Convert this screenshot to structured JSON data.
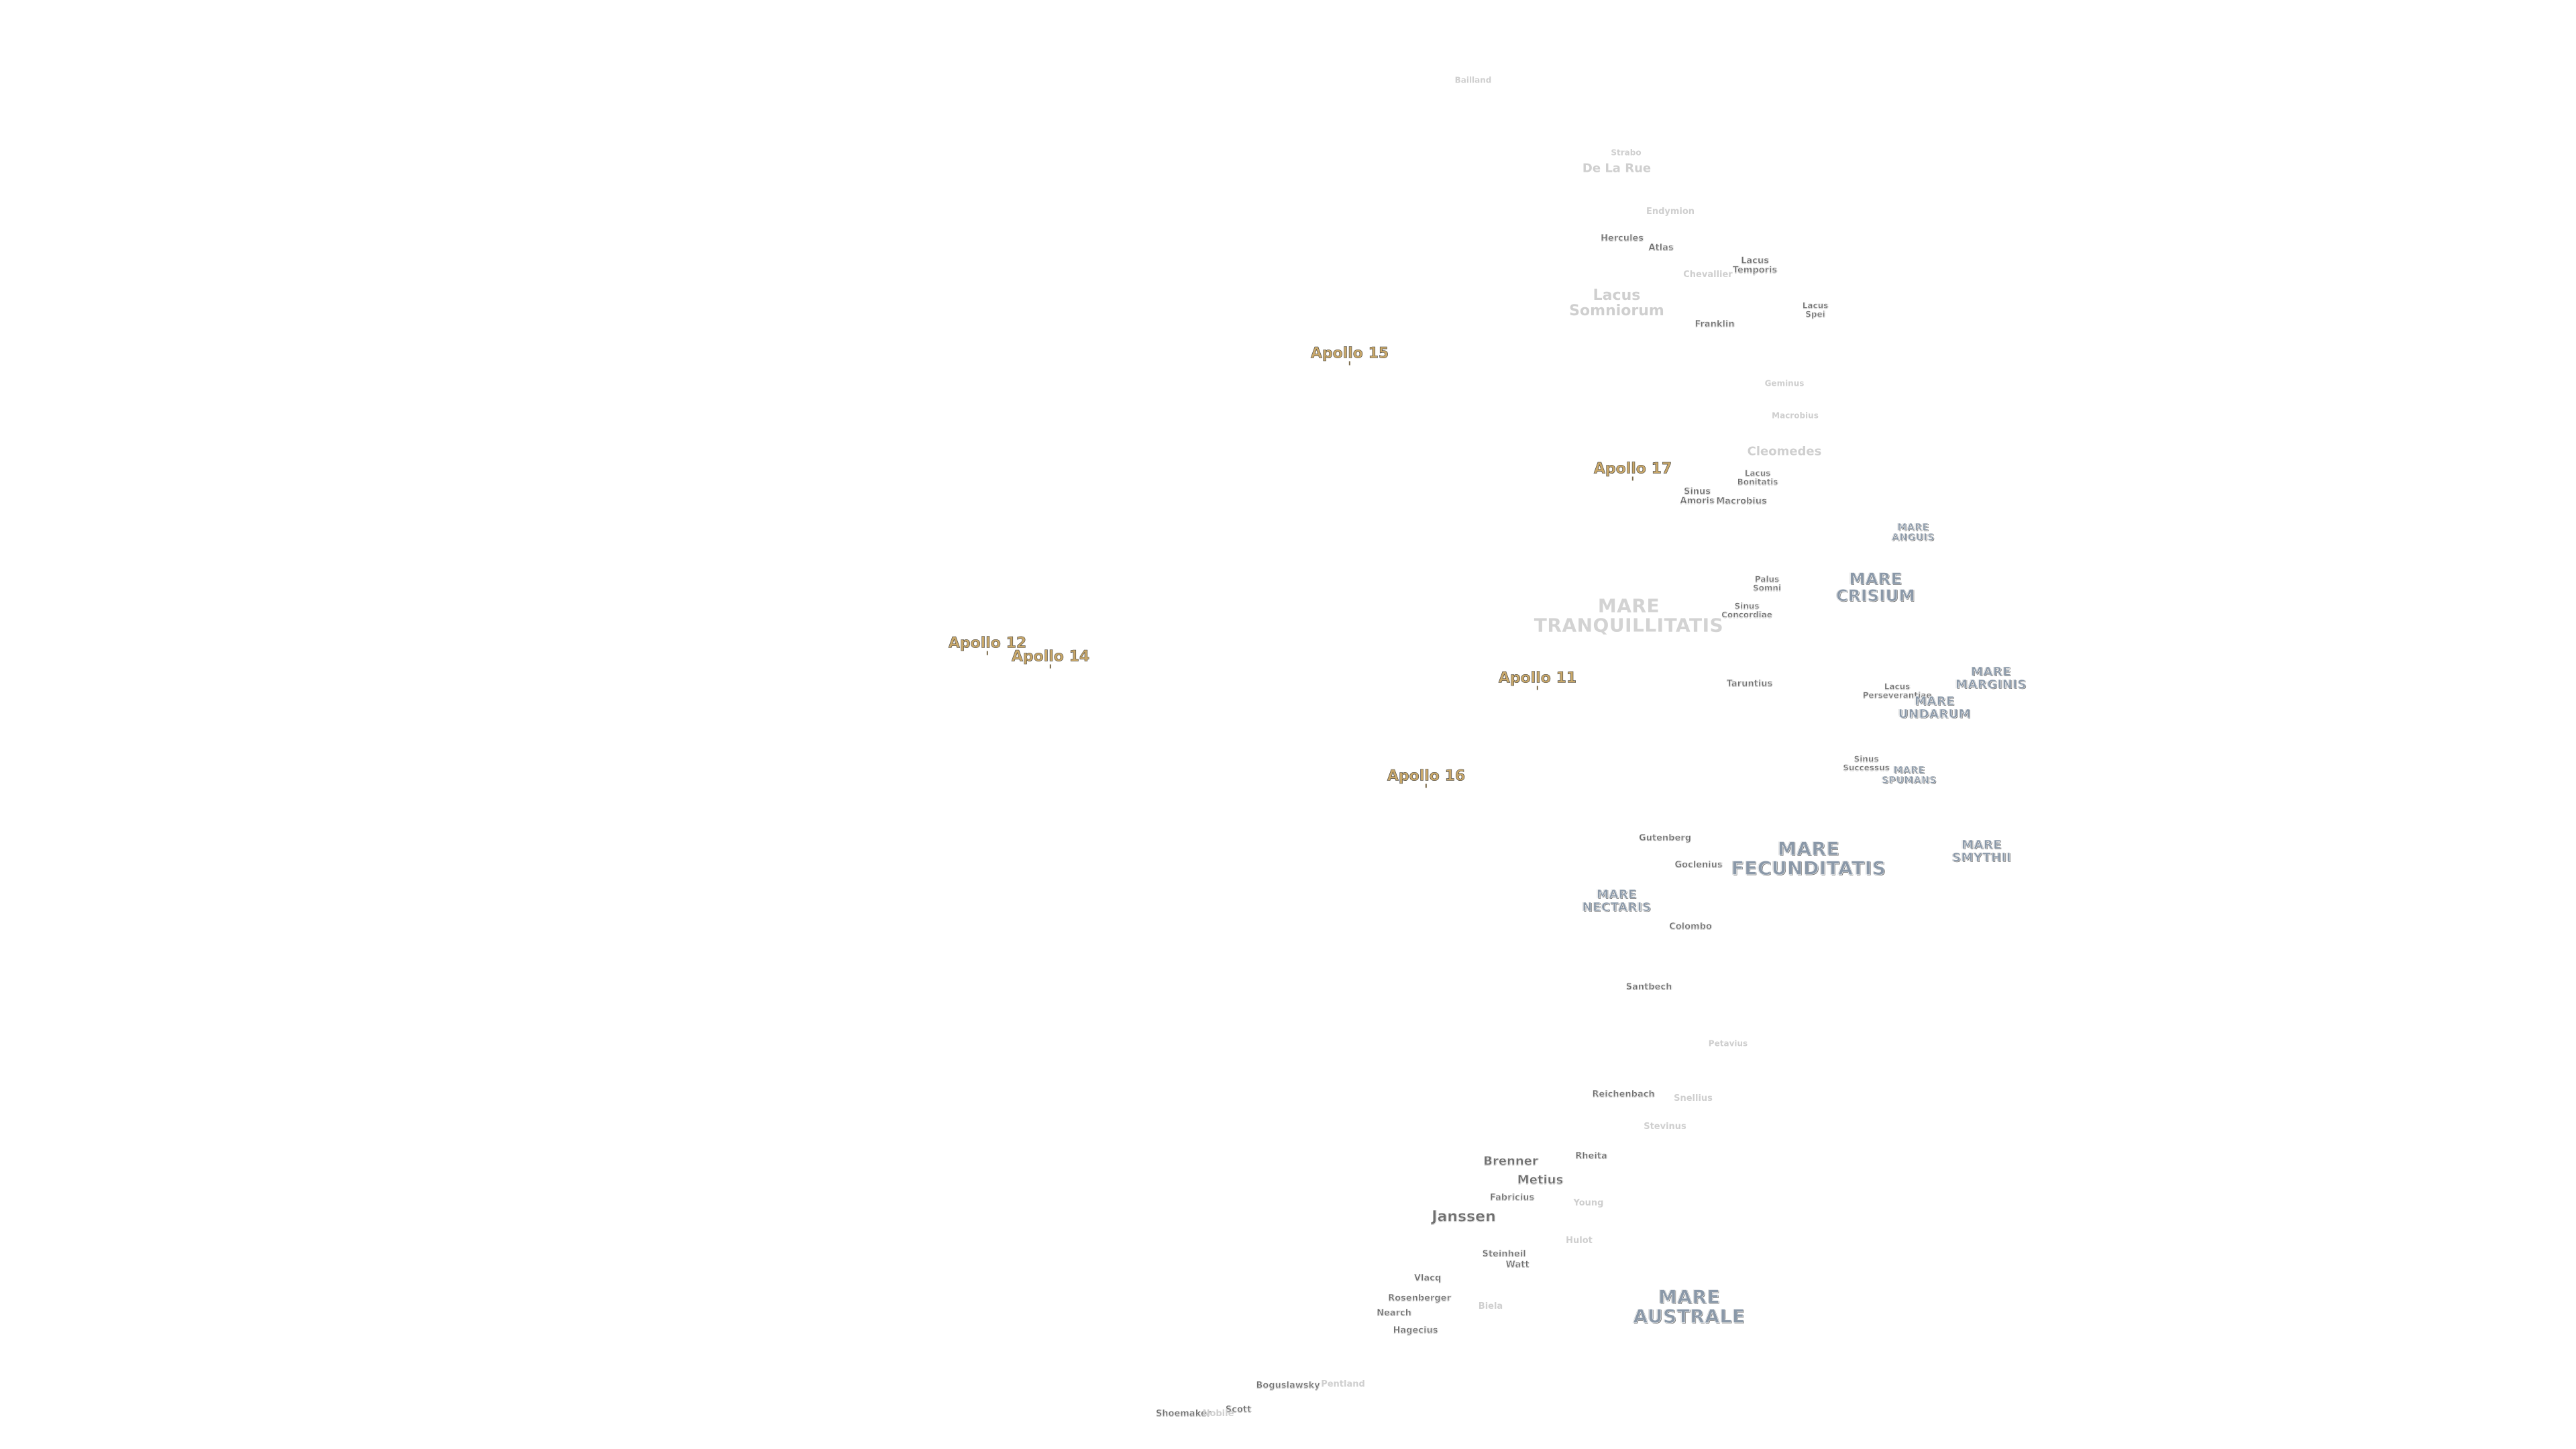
{
  "map": {
    "labels": [
      {
        "id": "bailland",
        "text": "Bailland",
        "kind": "feat",
        "mods": "tiny faded",
        "pos": "p1"
      },
      {
        "id": "strabo",
        "text": "Strabo",
        "kind": "feat",
        "mods": "tiny faded",
        "pos": "p2"
      },
      {
        "id": "de-la-rue",
        "text": "De La Rue",
        "kind": "feat",
        "mods": "med faded",
        "pos": "p3"
      },
      {
        "id": "endymion",
        "text": "Endymion",
        "kind": "feat",
        "mods": "small faded",
        "pos": "p4"
      },
      {
        "id": "hercules",
        "text": "Hercules",
        "kind": "feat",
        "mods": "small",
        "pos": "p5"
      },
      {
        "id": "atlas",
        "text": "Atlas",
        "kind": "feat",
        "mods": "small",
        "pos": "p6"
      },
      {
        "id": "lacus-temporis",
        "text": "Lacus\nTemporis",
        "kind": "feat",
        "mods": "small",
        "pos": "p7"
      },
      {
        "id": "chevallier",
        "text": "Chevallier",
        "kind": "feat",
        "mods": "small faded",
        "pos": "p8"
      },
      {
        "id": "lacus-somniorum",
        "text": "Lacus\nSomniorum",
        "kind": "feat",
        "mods": "big faded",
        "pos": "p9"
      },
      {
        "id": "franklin",
        "text": "Franklin",
        "kind": "feat",
        "mods": "small",
        "pos": "p10"
      },
      {
        "id": "lacus-spei",
        "text": "Lacus\nSpei",
        "kind": "feat",
        "mods": "tiny",
        "pos": "p11"
      },
      {
        "id": "apollo-15",
        "text": "Apollo 15",
        "kind": "apollo",
        "mods": "",
        "pos": "p12"
      },
      {
        "id": "geminus",
        "text": "Geminus",
        "kind": "feat",
        "mods": "tiny faded",
        "pos": "p13"
      },
      {
        "id": "macrobius-faded",
        "text": "Macrobius",
        "kind": "feat",
        "mods": "tiny faded",
        "pos": "p14"
      },
      {
        "id": "cleomedes",
        "text": "Cleomedes",
        "kind": "feat",
        "mods": "med faded",
        "pos": "p15"
      },
      {
        "id": "apollo-17",
        "text": "Apollo 17",
        "kind": "apollo",
        "mods": "",
        "pos": "p16"
      },
      {
        "id": "lacus-bonitatis",
        "text": "Lacus\nBonitatis",
        "kind": "feat",
        "mods": "tiny",
        "pos": "p17"
      },
      {
        "id": "sinus-amoris",
        "text": "Sinus\nAmoris",
        "kind": "feat",
        "mods": "small",
        "pos": "p18"
      },
      {
        "id": "macrobius",
        "text": "Macrobius",
        "kind": "feat",
        "mods": "small",
        "pos": "p19"
      },
      {
        "id": "mare-anguis",
        "text": "MARE\nANGUIS",
        "kind": "mare",
        "mods": "tiny",
        "pos": "p20"
      },
      {
        "id": "palus-somni",
        "text": "Palus\nSomni",
        "kind": "feat",
        "mods": "tiny",
        "pos": "p21"
      },
      {
        "id": "mare-crisium",
        "text": "MARE\nCRISIUM",
        "kind": "mare",
        "mods": "",
        "pos": "p22"
      },
      {
        "id": "mare-tranquillitatis",
        "text": "MARE\nTRANQUILLITATIS",
        "kind": "mare",
        "mods": "faded",
        "pos": "p23"
      },
      {
        "id": "sinus-concordiae",
        "text": "Sinus\nConcordiae",
        "kind": "feat",
        "mods": "tiny",
        "pos": "p24"
      },
      {
        "id": "apollo-12",
        "text": "Apollo 12",
        "kind": "apollo",
        "mods": "",
        "pos": "p25"
      },
      {
        "id": "apollo-14",
        "text": "Apollo 14",
        "kind": "apollo",
        "mods": "",
        "pos": "p26"
      },
      {
        "id": "apollo-11",
        "text": "Apollo 11",
        "kind": "apollo",
        "mods": "",
        "pos": "p27"
      },
      {
        "id": "taruntius",
        "text": "Taruntius",
        "kind": "feat",
        "mods": "small",
        "pos": "p28"
      },
      {
        "id": "lacus-perseverantiae",
        "text": "Lacus\nPerseverantiae",
        "kind": "feat",
        "mods": "tiny",
        "pos": "p29"
      },
      {
        "id": "mare-marginis",
        "text": "MARE\nMARGINIS",
        "kind": "mare",
        "mods": "small",
        "pos": "p30"
      },
      {
        "id": "mare-undarum",
        "text": "MARE\nUNDARUM",
        "kind": "mare",
        "mods": "small",
        "pos": "p31"
      },
      {
        "id": "apollo-16",
        "text": "Apollo 16",
        "kind": "apollo",
        "mods": "",
        "pos": "p32"
      },
      {
        "id": "sinus-successus",
        "text": "Sinus\nSuccessus",
        "kind": "feat",
        "mods": "tiny",
        "pos": "p33"
      },
      {
        "id": "mare-spumans",
        "text": "MARE\nSPUMANS",
        "kind": "mare",
        "mods": "tiny",
        "pos": "p34"
      },
      {
        "id": "gutenberg",
        "text": "Gutenberg",
        "kind": "feat",
        "mods": "small",
        "pos": "p35"
      },
      {
        "id": "mare-fecunditatis",
        "text": "MARE\nFECUNDITATIS",
        "kind": "mare",
        "mods": "large",
        "pos": "p36"
      },
      {
        "id": "mare-smythii",
        "text": "MARE\nSMYTHII",
        "kind": "mare",
        "mods": "small",
        "pos": "p37"
      },
      {
        "id": "goclenius",
        "text": "Goclenius",
        "kind": "feat",
        "mods": "small",
        "pos": "p38"
      },
      {
        "id": "mare-nectaris",
        "text": "MARE\nNECTARIS",
        "kind": "mare",
        "mods": "small",
        "pos": "p39"
      },
      {
        "id": "colombo",
        "text": "Colombo",
        "kind": "feat",
        "mods": "small",
        "pos": "p40"
      },
      {
        "id": "santbech",
        "text": "Santbech",
        "kind": "feat",
        "mods": "small",
        "pos": "p41"
      },
      {
        "id": "petavius",
        "text": "Petavius",
        "kind": "feat",
        "mods": "tiny faded",
        "pos": "p42"
      },
      {
        "id": "reichenbach",
        "text": "Reichenbach",
        "kind": "feat",
        "mods": "small",
        "pos": "p43"
      },
      {
        "id": "snellius",
        "text": "Snellius",
        "kind": "feat",
        "mods": "small faded",
        "pos": "p44"
      },
      {
        "id": "stevinus",
        "text": "Stevinus",
        "kind": "feat",
        "mods": "small faded",
        "pos": "p45"
      },
      {
        "id": "brenner",
        "text": "Brenner",
        "kind": "feat",
        "mods": "med",
        "pos": "p46"
      },
      {
        "id": "rheita",
        "text": "Rheita",
        "kind": "feat",
        "mods": "small",
        "pos": "p47"
      },
      {
        "id": "metius",
        "text": "Metius",
        "kind": "feat",
        "mods": "med",
        "pos": "p48"
      },
      {
        "id": "fabricius",
        "text": "Fabricius",
        "kind": "feat",
        "mods": "small",
        "pos": "p49"
      },
      {
        "id": "young",
        "text": "Young",
        "kind": "feat",
        "mods": "small faded",
        "pos": "p50"
      },
      {
        "id": "janssen",
        "text": "Janssen",
        "kind": "feat",
        "mods": "big",
        "pos": "p51"
      },
      {
        "id": "hulot",
        "text": "Hulot",
        "kind": "feat",
        "mods": "small faded",
        "pos": "p52"
      },
      {
        "id": "steinheil",
        "text": "Steinheil",
        "kind": "feat",
        "mods": "small",
        "pos": "p53"
      },
      {
        "id": "watt",
        "text": "Watt",
        "kind": "feat",
        "mods": "small",
        "pos": "p54"
      },
      {
        "id": "vlacq",
        "text": "Vlacq",
        "kind": "feat",
        "mods": "small",
        "pos": "p55"
      },
      {
        "id": "mare-australe",
        "text": "MARE\nAUSTRALE",
        "kind": "mare",
        "mods": "large",
        "pos": "p56"
      },
      {
        "id": "rosenberger",
        "text": "Rosenberger",
        "kind": "feat",
        "mods": "small",
        "pos": "p57"
      },
      {
        "id": "biela",
        "text": "Biela",
        "kind": "feat",
        "mods": "small faded",
        "pos": "p58"
      },
      {
        "id": "nearch",
        "text": "Nearch",
        "kind": "feat",
        "mods": "small",
        "pos": "p59"
      },
      {
        "id": "hagecius",
        "text": "Hagecius",
        "kind": "feat",
        "mods": "small",
        "pos": "p60"
      },
      {
        "id": "boguslawsky",
        "text": "Boguslawsky",
        "kind": "feat",
        "mods": "small",
        "pos": "p61"
      },
      {
        "id": "pentland",
        "text": "Pentland",
        "kind": "feat",
        "mods": "small faded",
        "pos": "p62"
      },
      {
        "id": "scott",
        "text": "Scott",
        "kind": "feat",
        "mods": "small",
        "pos": "p63"
      },
      {
        "id": "shoemaker",
        "text": "Shoemaker",
        "kind": "feat",
        "mods": "small",
        "pos": "p64"
      },
      {
        "id": "nobile",
        "text": "Nobile",
        "kind": "feat",
        "mods": "small faded",
        "pos": "p65"
      }
    ]
  }
}
